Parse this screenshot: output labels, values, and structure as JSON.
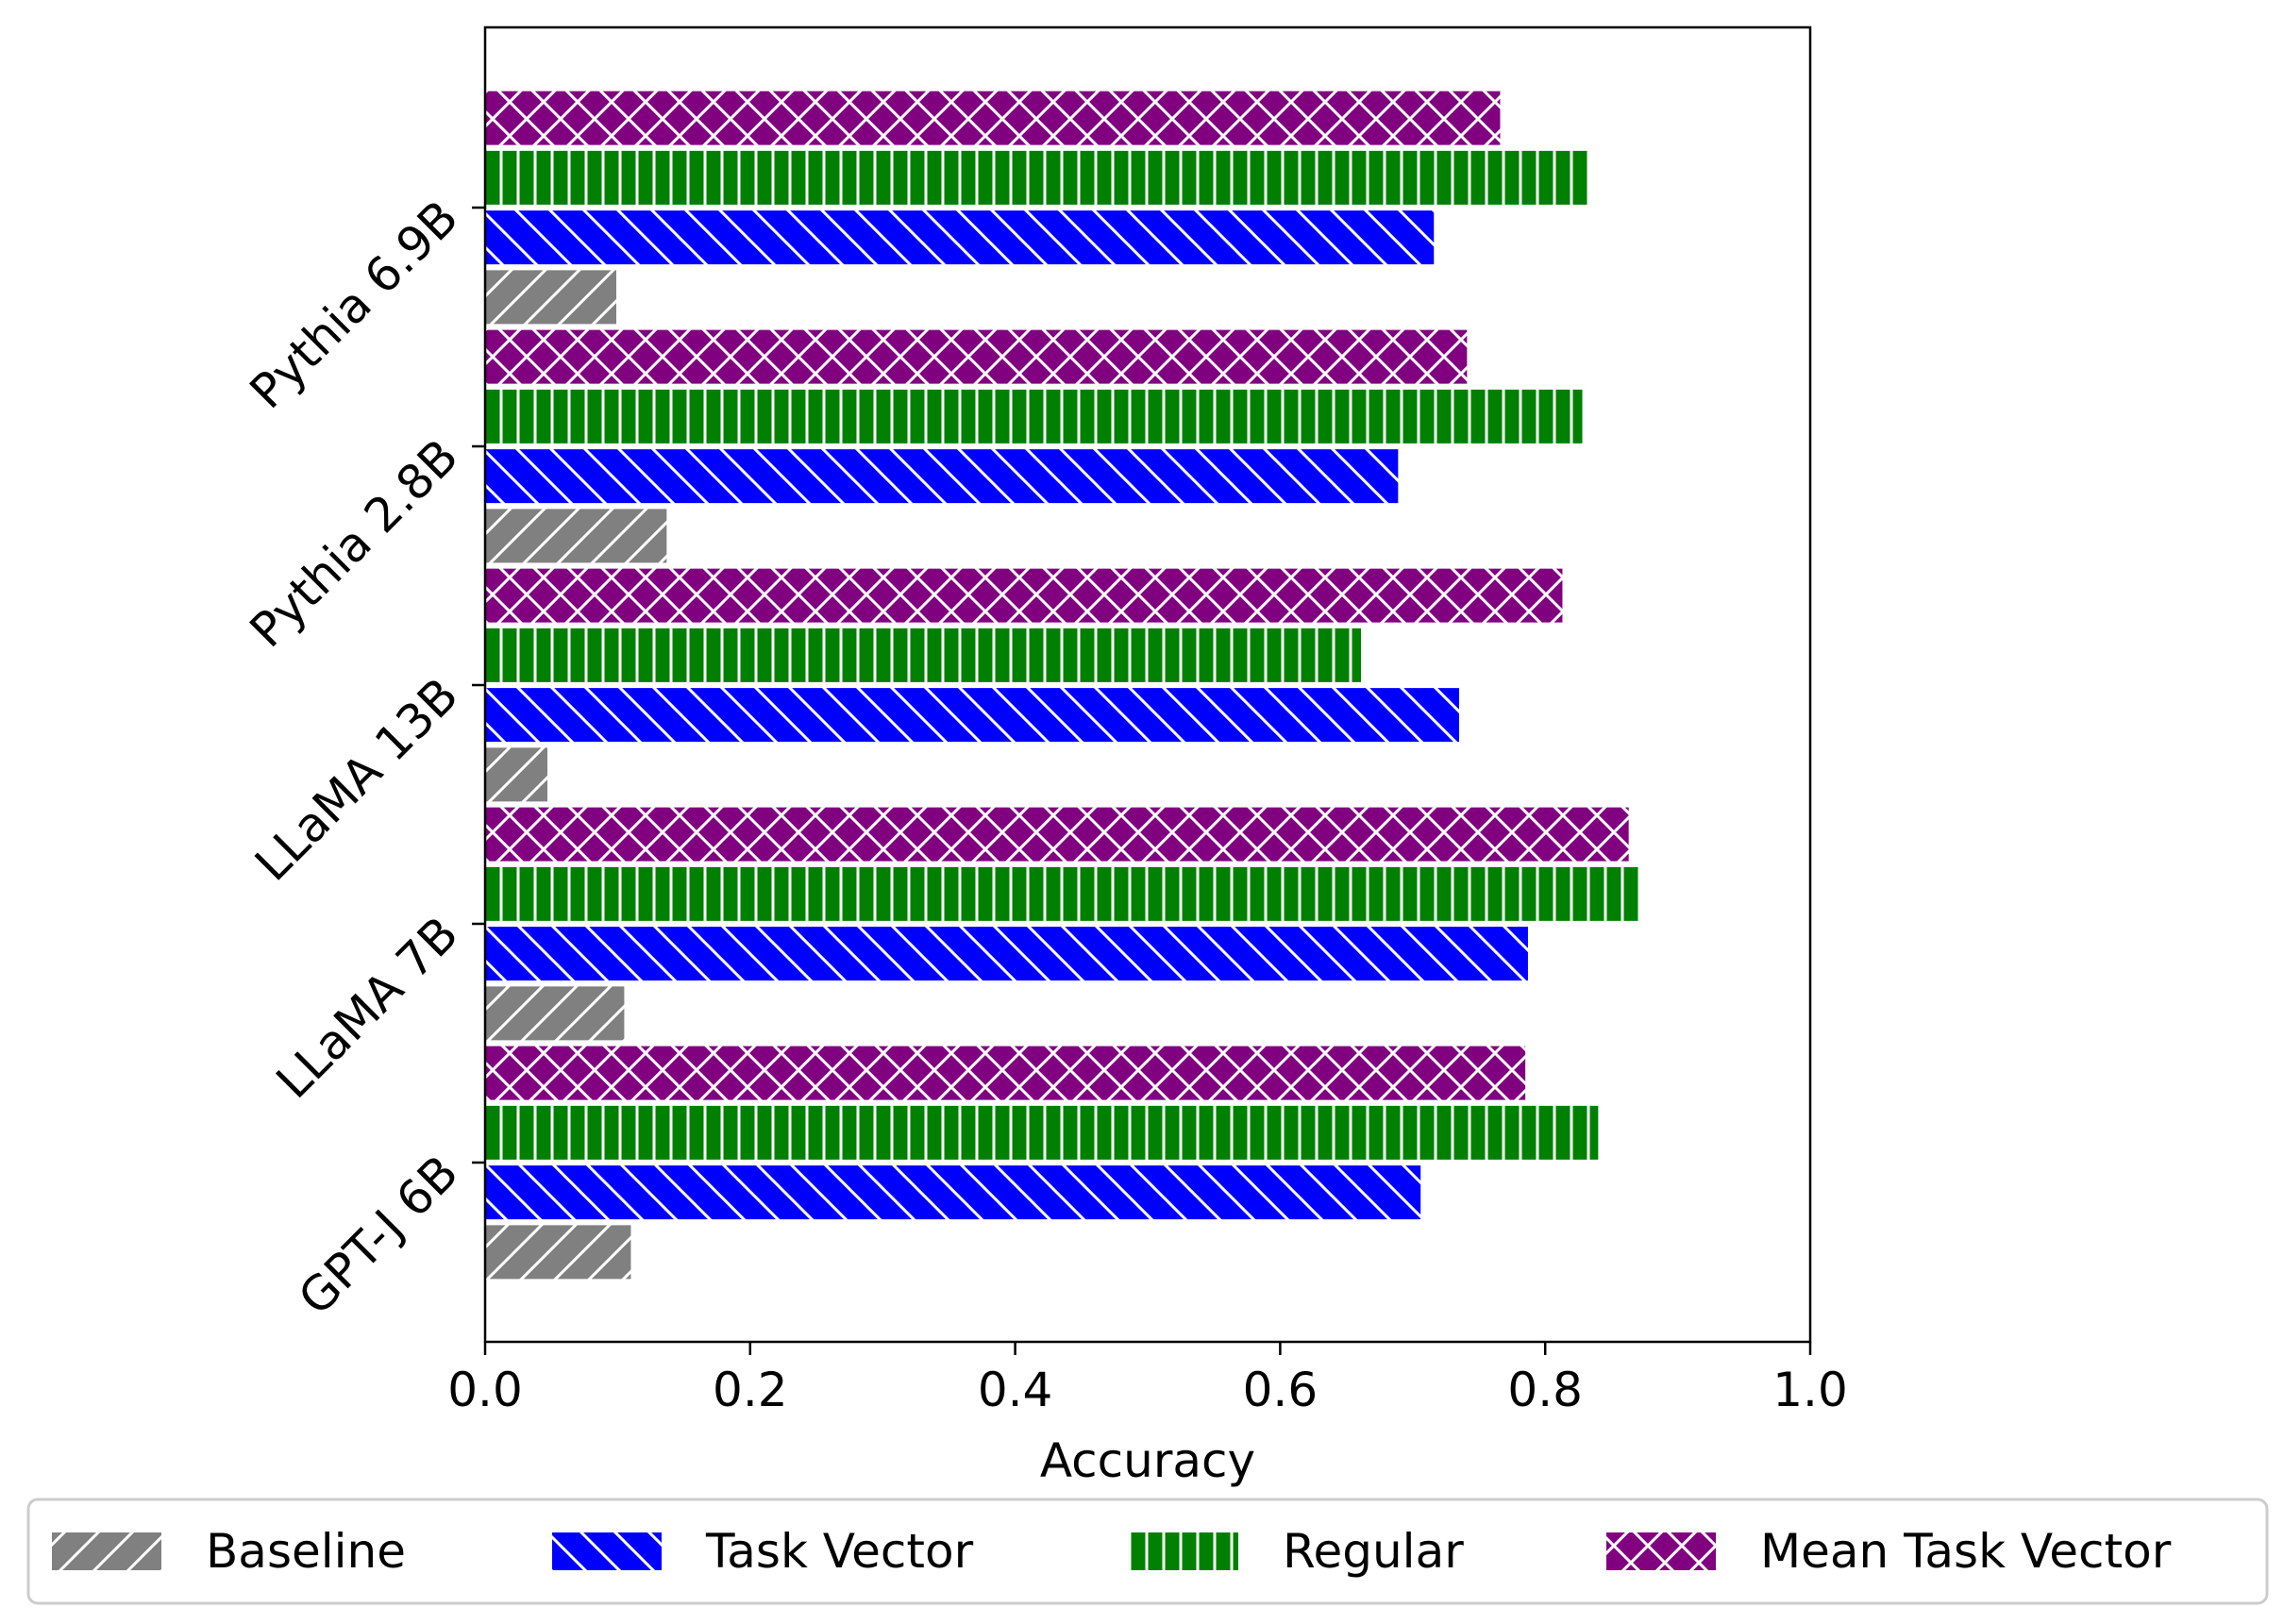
{
  "chart_data": {
    "type": "bar",
    "orientation": "horizontal",
    "categories": [
      "GPT-J 6B",
      "LLaMA 7B",
      "LLaMA 13B",
      "Pythia 2.8B",
      "Pythia 6.9B"
    ],
    "series": [
      {
        "name": "Baseline",
        "values": [
          0.11,
          0.105,
          0.047,
          0.137,
          0.099
        ],
        "color": "#808080",
        "hatch": "forward-diagonal"
      },
      {
        "name": "Task Vector",
        "values": [
          0.706,
          0.787,
          0.735,
          0.689,
          0.716
        ],
        "color": "#0000ff",
        "hatch": "back-diagonal"
      },
      {
        "name": "Regular",
        "values": [
          0.84,
          0.872,
          0.661,
          0.828,
          0.833
        ],
        "color": "#008000",
        "hatch": "vertical"
      },
      {
        "name": "Mean Task Vector",
        "values": [
          0.785,
          0.863,
          0.813,
          0.741,
          0.766
        ],
        "color": "#800080",
        "hatch": "cross-diagonal"
      }
    ],
    "xlabel": "Accuracy",
    "ylabel": "",
    "xlim": [
      0,
      1
    ],
    "xticks": [
      0.0,
      0.2,
      0.4,
      0.6,
      0.8,
      1.0
    ],
    "xtick_labels": [
      "0.0",
      "0.2",
      "0.4",
      "0.6",
      "0.8",
      "1.0"
    ],
    "grid": false,
    "legend_position": "bottom"
  }
}
